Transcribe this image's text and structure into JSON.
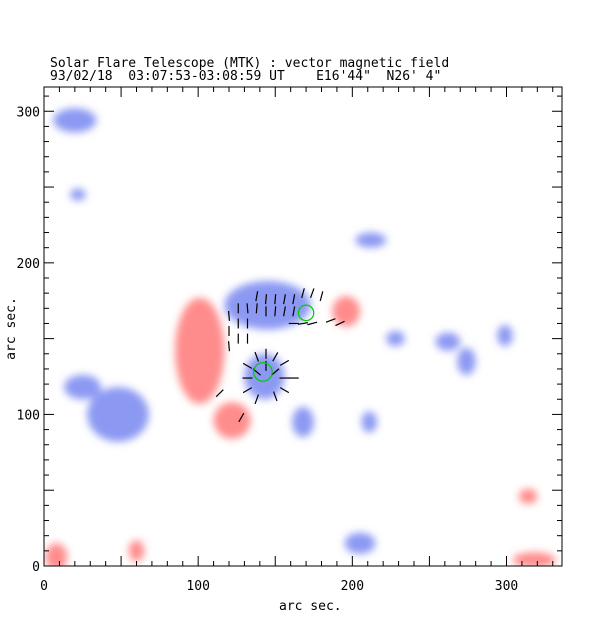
{
  "chart_data": {
    "type": "heatmap",
    "title": "Solar Flare Telescope (MTK) : vector magnetic field",
    "subtitle": "93/02/18  03:07:53-03:08:59 UT    E16'44\"  N26' 4\"",
    "xlabel": "arc sec.",
    "ylabel": "arc sec.",
    "xlim": [
      0,
      336
    ],
    "ylim": [
      0,
      316
    ],
    "xticks": [
      0,
      100,
      200,
      300
    ],
    "yticks": [
      0,
      100,
      200,
      300
    ],
    "colors": {
      "positive": "#ff6666",
      "negative": "#6677ee",
      "vector": "#000000",
      "contour": "#00cc00"
    },
    "blobs": [
      {
        "x": 101,
        "y": 142,
        "rx": 16,
        "ry": 35,
        "p": 1
      },
      {
        "x": 122,
        "y": 96,
        "rx": 12,
        "ry": 12,
        "p": 1
      },
      {
        "x": 196,
        "y": 168,
        "rx": 9,
        "ry": 10,
        "p": 1
      },
      {
        "x": 8,
        "y": 6,
        "rx": 7,
        "ry": 9,
        "p": 1
      },
      {
        "x": 60,
        "y": 10,
        "rx": 5,
        "ry": 7,
        "p": 1
      },
      {
        "x": 314,
        "y": 46,
        "rx": 6,
        "ry": 5,
        "p": 1
      },
      {
        "x": 318,
        "y": 4,
        "rx": 14,
        "ry": 5,
        "p": 1
      },
      {
        "x": 145,
        "y": 172,
        "rx": 28,
        "ry": 16,
        "p": -1
      },
      {
        "x": 143,
        "y": 125,
        "rx": 13,
        "ry": 15,
        "p": -1
      },
      {
        "x": 48,
        "y": 100,
        "rx": 20,
        "ry": 18,
        "p": -1
      },
      {
        "x": 25,
        "y": 118,
        "rx": 12,
        "ry": 8,
        "p": -1
      },
      {
        "x": 168,
        "y": 95,
        "rx": 7,
        "ry": 10,
        "p": -1
      },
      {
        "x": 20,
        "y": 294,
        "rx": 14,
        "ry": 8,
        "p": -1
      },
      {
        "x": 205,
        "y": 15,
        "rx": 10,
        "ry": 7,
        "p": -1
      },
      {
        "x": 262,
        "y": 148,
        "rx": 8,
        "ry": 6,
        "p": -1
      },
      {
        "x": 274,
        "y": 135,
        "rx": 6,
        "ry": 9,
        "p": -1
      },
      {
        "x": 299,
        "y": 152,
        "rx": 5,
        "ry": 7,
        "p": -1
      },
      {
        "x": 211,
        "y": 95,
        "rx": 5,
        "ry": 7,
        "p": -1
      },
      {
        "x": 22,
        "y": 245,
        "rx": 5,
        "ry": 4,
        "p": -1
      },
      {
        "x": 228,
        "y": 150,
        "rx": 6,
        "ry": 5,
        "p": -1
      },
      {
        "x": 212,
        "y": 215,
        "rx": 10,
        "ry": 5,
        "p": -1
      }
    ],
    "vectors": [
      [
        120,
        165,
        95
      ],
      [
        120,
        155,
        90
      ],
      [
        120,
        145,
        95
      ],
      [
        126,
        170,
        90
      ],
      [
        126,
        160,
        90
      ],
      [
        126,
        150,
        90
      ],
      [
        132,
        170,
        95
      ],
      [
        132,
        160,
        90
      ],
      [
        132,
        150,
        90
      ],
      [
        138,
        178,
        80
      ],
      [
        138,
        170,
        85
      ],
      [
        144,
        176,
        85
      ],
      [
        144,
        168,
        90
      ],
      [
        150,
        176,
        85
      ],
      [
        150,
        168,
        85
      ],
      [
        156,
        176,
        80
      ],
      [
        156,
        168,
        80
      ],
      [
        162,
        176,
        80
      ],
      [
        162,
        168,
        80
      ],
      [
        168,
        180,
        75
      ],
      [
        174,
        180,
        70
      ],
      [
        180,
        178,
        75
      ],
      [
        162,
        160,
        0
      ],
      [
        168,
        160,
        10
      ],
      [
        174,
        160,
        15
      ],
      [
        186,
        162,
        20
      ],
      [
        192,
        160,
        25
      ],
      [
        132,
        132,
        150
      ],
      [
        138,
        138,
        110
      ],
      [
        144,
        140,
        90
      ],
      [
        150,
        138,
        60
      ],
      [
        156,
        134,
        30
      ],
      [
        132,
        124,
        0
      ],
      [
        156,
        124,
        0
      ],
      [
        162,
        124,
        0
      ],
      [
        132,
        116,
        30
      ],
      [
        138,
        110,
        70
      ],
      [
        150,
        112,
        110
      ],
      [
        156,
        116,
        150
      ],
      [
        144,
        132,
        90
      ],
      [
        150,
        128,
        40
      ],
      [
        138,
        128,
        140
      ],
      [
        114,
        114,
        45
      ],
      [
        128,
        98,
        60
      ]
    ],
    "contours": [
      {
        "x": 142,
        "y": 128,
        "r": 6
      },
      {
        "x": 170,
        "y": 167,
        "r": 5
      }
    ]
  }
}
